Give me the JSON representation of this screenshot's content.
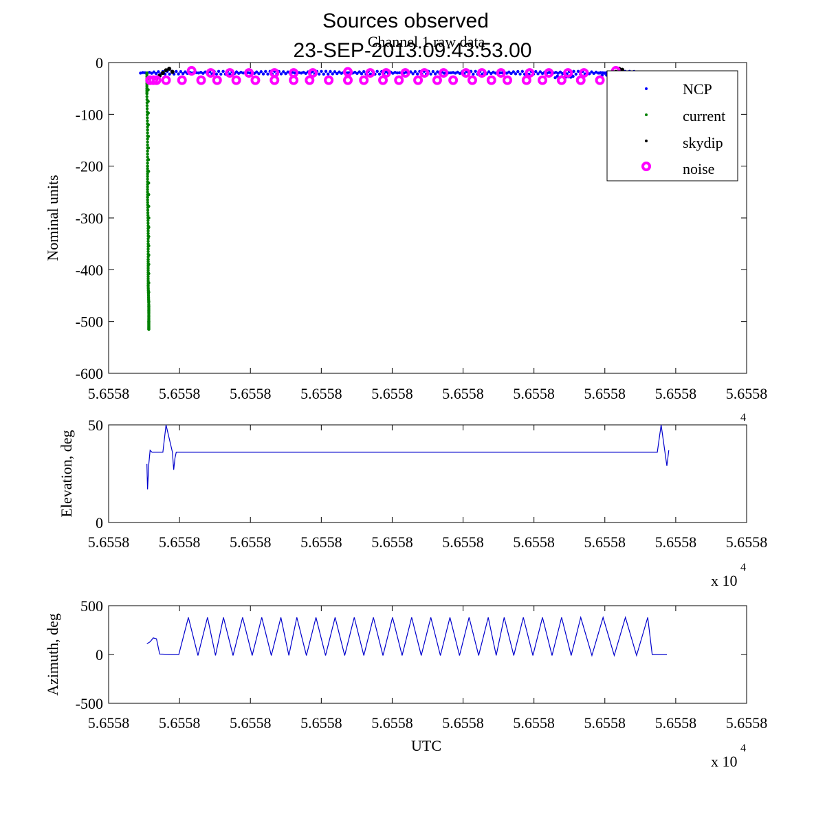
{
  "figure": {
    "title": "Sources observed",
    "subtitle": "23-SEP-2013:09:43:53.00",
    "panel_title": "Channel 1 raw data"
  },
  "colors": {
    "ncp": "#0000ff",
    "current": "#008000",
    "skydip": "#000000",
    "noise": "#ff00ff",
    "line": "#0000cc"
  },
  "chart_data": [
    {
      "type": "scatter",
      "title": "Channel 1 raw data",
      "xlabel": "",
      "ylabel": "Nominal units",
      "xlim": [
        0,
        1
      ],
      "ylim": [
        -600,
        0
      ],
      "yticks": [
        0,
        -100,
        -200,
        -300,
        -400,
        -500,
        -600
      ],
      "xtick_labels": [
        "5.6558",
        "5.6558",
        "5.6558",
        "5.6558",
        "5.6558",
        "5.6558",
        "5.6558",
        "5.6558",
        "5.6558",
        "5.6558"
      ],
      "x_exponent": "",
      "grid": false,
      "legend_position": "top-right",
      "series": [
        {
          "name": "NCP",
          "segments": [
            {
              "x0": 0.05,
              "x1": 0.825,
              "y": -17
            },
            {
              "x0": 0.7,
              "x1": 0.73,
              "y": -25
            },
            {
              "x0": 0.77,
              "x1": 0.84,
              "y": -20
            }
          ]
        },
        {
          "name": "current",
          "x": [
            0.06,
            0.06,
            0.061,
            0.061,
            0.061,
            0.062,
            0.062,
            0.062,
            0.063,
            0.063,
            0.063,
            0.063,
            0.062
          ],
          "y": [
            -20,
            -60,
            -130,
            -200,
            -260,
            -320,
            -380,
            -430,
            -470,
            -500,
            -515,
            -300,
            -30
          ]
        },
        {
          "name": "skydip",
          "x": [
            0.075,
            0.08,
            0.085,
            0.09,
            0.095,
            0.1,
            0.79,
            0.795,
            0.8,
            0.805,
            0.81
          ],
          "y": [
            -30,
            -25,
            -20,
            -15,
            -12,
            -18,
            -22,
            -18,
            -12,
            -14,
            -20
          ]
        },
        {
          "name": "noise",
          "x": [
            0.065,
            0.07,
            0.075,
            0.09,
            0.115,
            0.145,
            0.17,
            0.2,
            0.23,
            0.26,
            0.29,
            0.315,
            0.345,
            0.375,
            0.4,
            0.43,
            0.455,
            0.485,
            0.515,
            0.54,
            0.57,
            0.6,
            0.625,
            0.655,
            0.68,
            0.71,
            0.74,
            0.77
          ],
          "y": [
            -34,
            -34,
            -34,
            -34,
            -34,
            -34,
            -34,
            -34,
            -34,
            -34,
            -34,
            -34,
            -34,
            -34,
            -34,
            -34,
            -34,
            -34,
            -34,
            -34,
            -34,
            -34,
            -34,
            -34,
            -34,
            -34,
            -34,
            -34
          ],
          "x2": [
            0.13,
            0.16,
            0.19,
            0.22,
            0.26,
            0.29,
            0.32,
            0.375,
            0.41,
            0.435,
            0.465,
            0.495,
            0.525,
            0.56,
            0.585,
            0.615,
            0.66,
            0.69,
            0.72,
            0.745,
            0.795
          ],
          "y2": [
            -16,
            -20,
            -20,
            -20,
            -20,
            -20,
            -20,
            -18,
            -20,
            -20,
            -20,
            -20,
            -20,
            -20,
            -20,
            -20,
            -20,
            -20,
            -20,
            -20,
            -16
          ]
        }
      ]
    },
    {
      "type": "line",
      "title": "",
      "xlabel": "",
      "ylabel": "Elevation, deg",
      "xlim": [
        0,
        1
      ],
      "ylim": [
        0,
        50
      ],
      "yticks": [
        0,
        50
      ],
      "xtick_labels": [
        "5.6558",
        "5.6558",
        "5.6558",
        "5.6558",
        "5.6558",
        "5.6558",
        "5.6558",
        "5.6558",
        "5.6558",
        "5.6558"
      ],
      "x_exponent": "4",
      "grid": false,
      "series": [
        {
          "name": "",
          "x": [
            0.06,
            0.061,
            0.063,
            0.065,
            0.068,
            0.07,
            0.075,
            0.08,
            0.085,
            0.09,
            0.095,
            0.1,
            0.102,
            0.104,
            0.106,
            0.11,
            0.5,
            0.85,
            0.86,
            0.863,
            0.866,
            0.869,
            0.872,
            0.875,
            0.878
          ],
          "y": [
            30,
            17,
            30,
            37,
            36,
            36,
            36,
            36,
            36,
            50,
            43,
            36,
            27,
            33,
            36,
            36,
            36,
            36,
            36,
            43,
            50,
            43,
            36,
            29,
            37
          ]
        }
      ]
    },
    {
      "type": "line",
      "title": "",
      "xlabel": "UTC",
      "ylabel": "Azimuth, deg",
      "xlim": [
        0,
        1
      ],
      "ylim": [
        -500,
        500
      ],
      "yticks": [
        500,
        0,
        -500
      ],
      "xtick_labels": [
        "5.6558",
        "5.6558",
        "5.6558",
        "5.6558",
        "5.6558",
        "5.6558",
        "5.6558",
        "5.6558",
        "5.6558",
        "5.6558"
      ],
      "x_exponent": "4",
      "grid": false,
      "series": [
        {
          "name": "",
          "start": [
            [
              0.06,
              110
            ],
            [
              0.065,
              130
            ],
            [
              0.07,
              170
            ],
            [
              0.075,
              160
            ],
            [
              0.08,
              5
            ],
            [
              0.1,
              0
            ],
            [
              0.11,
              0
            ]
          ],
          "peaks": [
            0.125,
            0.155,
            0.18,
            0.21,
            0.24,
            0.27,
            0.295,
            0.325,
            0.355,
            0.385,
            0.415,
            0.445,
            0.475,
            0.505,
            0.535,
            0.565,
            0.595,
            0.62,
            0.65,
            0.68,
            0.71,
            0.74,
            0.775,
            0.81,
            0.845
          ],
          "peak_value": 380,
          "trough_value": 0,
          "end": [
            [
              0.86,
              0
            ],
            [
              0.875,
              0
            ]
          ]
        }
      ]
    }
  ]
}
